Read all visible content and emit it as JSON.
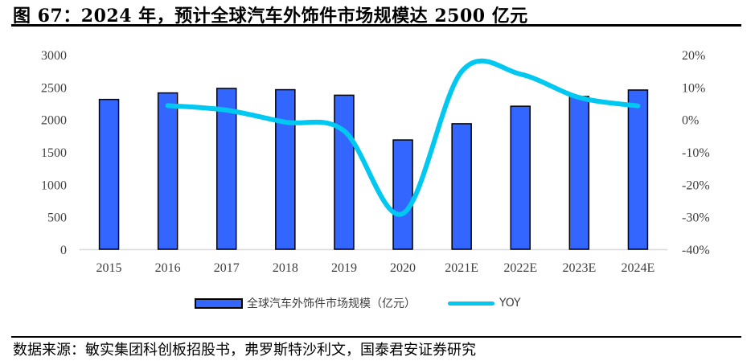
{
  "title": "图 67：2024 年，预计全球汽车外饰件市场规模达 2500 亿元",
  "source": "数据来源：敏实集团科创板招股书，弗罗斯特沙利文，国泰君安证券研究",
  "legend": {
    "bar_label": "全球汽车外饰件市场规模（亿元）",
    "line_label": "YOY"
  },
  "colors": {
    "bar": "#3366ff",
    "bar_border": "#000000",
    "line": "#00c8f0",
    "axis": "#d9d9d9",
    "tick_text": "#404040"
  },
  "chart_data": {
    "type": "bar+line",
    "title": "2024 年，预计全球汽车外饰件市场规模达 2500 亿元",
    "categories": [
      "2015",
      "2016",
      "2017",
      "2018",
      "2019",
      "2020",
      "2021E",
      "2022E",
      "2023E",
      "2024E"
    ],
    "series": [
      {
        "name": "全球汽车外饰件市场规模（亿元）",
        "type": "bar",
        "axis": "left",
        "values": [
          2310,
          2410,
          2480,
          2460,
          2375,
          1685,
          1935,
          2205,
          2355,
          2455
        ]
      },
      {
        "name": "YOY",
        "type": "line",
        "axis": "right",
        "unit": "%",
        "values": [
          null,
          4.3,
          2.9,
          -0.8,
          -3.5,
          -29.0,
          14.8,
          14.0,
          6.8,
          4.2
        ]
      }
    ],
    "left_axis": {
      "ticks": [
        "0",
        "500",
        "1000",
        "1500",
        "2000",
        "2500",
        "3000"
      ],
      "ylim": [
        0,
        3000
      ]
    },
    "right_axis": {
      "ticks": [
        "-40%",
        "-30%",
        "-20%",
        "-10%",
        "0%",
        "10%",
        "20%"
      ],
      "ylim": [
        -40,
        20
      ]
    },
    "grid": false,
    "legend_position": "bottom"
  }
}
